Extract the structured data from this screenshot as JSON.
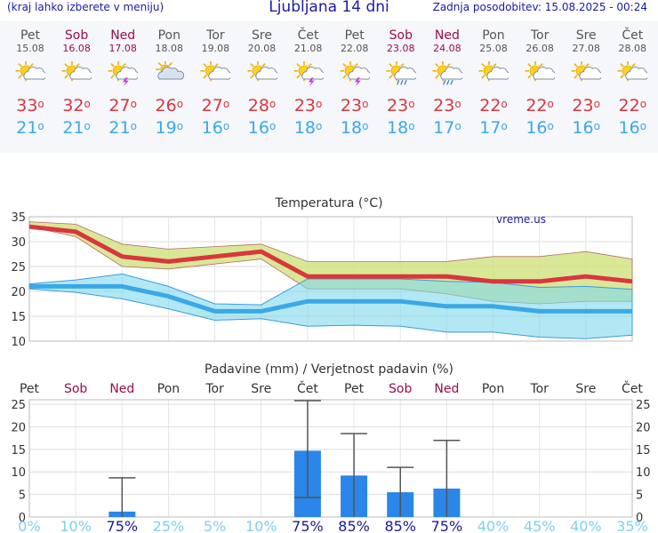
{
  "header": {
    "hint": "(kraj lahko izberete v meniju)",
    "title": "Ljubljana 14 dni",
    "updated": "Zadnja posodobitev: 15.08.2025 - 00:24"
  },
  "days": [
    {
      "name": "Pet",
      "date": "15.08",
      "weekend": false,
      "icon": "sun-cloud-icon",
      "hi": "33",
      "lo": "21"
    },
    {
      "name": "Sob",
      "date": "16.08",
      "weekend": true,
      "icon": "sun-cloud-icon",
      "hi": "32",
      "lo": "21"
    },
    {
      "name": "Ned",
      "date": "17.08",
      "weekend": true,
      "icon": "thunderstorm-sun-icon",
      "hi": "27",
      "lo": "21"
    },
    {
      "name": "Pon",
      "date": "18.08",
      "weekend": false,
      "icon": "cloudy-sun-icon",
      "hi": "26",
      "lo": "19"
    },
    {
      "name": "Tor",
      "date": "19.08",
      "weekend": false,
      "icon": "sun-cloud-icon",
      "hi": "27",
      "lo": "16"
    },
    {
      "name": "Sre",
      "date": "20.08",
      "weekend": false,
      "icon": "sun-cloud-icon",
      "hi": "28",
      "lo": "16"
    },
    {
      "name": "Čet",
      "date": "21.08",
      "weekend": false,
      "icon": "thunderstorm-sun-icon",
      "hi": "23",
      "lo": "18"
    },
    {
      "name": "Pet",
      "date": "22.08",
      "weekend": false,
      "icon": "thunderstorm-sun-icon",
      "hi": "23",
      "lo": "18"
    },
    {
      "name": "Sob",
      "date": "23.08",
      "weekend": true,
      "icon": "rain-sun-icon",
      "hi": "23",
      "lo": "18"
    },
    {
      "name": "Ned",
      "date": "24.08",
      "weekend": true,
      "icon": "rain-sun-icon",
      "hi": "23",
      "lo": "17"
    },
    {
      "name": "Pon",
      "date": "25.08",
      "weekend": false,
      "icon": "sun-cloud-icon",
      "hi": "22",
      "lo": "17"
    },
    {
      "name": "Tor",
      "date": "26.08",
      "weekend": false,
      "icon": "sun-cloud-icon",
      "hi": "22",
      "lo": "16"
    },
    {
      "name": "Sre",
      "date": "27.08",
      "weekend": false,
      "icon": "sun-cloud-icon",
      "hi": "23",
      "lo": "16"
    },
    {
      "name": "Čet",
      "date": "28.08",
      "weekend": false,
      "icon": "sun-cloud-icon",
      "hi": "22",
      "lo": "16"
    }
  ],
  "colors": {
    "weekend": "#9a0c4e",
    "weekday": "#555555",
    "max": "#d9363e",
    "min": "#3ba8e6",
    "max_band": "#cfe27c",
    "min_band": "#7fd8ec",
    "overlap_band": "#7fcf8e",
    "bar": "#2a86e8",
    "prob_low": "#7fd0f0",
    "prob_high": "#1a1a9a",
    "title_blue": "#1a1aa8"
  },
  "chart_data": [
    {
      "type": "area",
      "title": "Temperatura (°C)",
      "watermark": "vreme.us",
      "x": [
        "15.08",
        "16.08",
        "17.08",
        "18.08",
        "19.08",
        "20.08",
        "21.08",
        "22.08",
        "23.08",
        "24.08",
        "25.08",
        "26.08",
        "27.08",
        "28.08"
      ],
      "ylim": [
        10,
        35
      ],
      "yticks": [
        "10",
        "15",
        "20",
        "25",
        "30",
        "35"
      ],
      "grid": true,
      "series": [
        {
          "name": "max",
          "values": [
            33,
            32,
            27,
            26,
            27,
            28,
            23,
            23,
            23,
            23,
            22,
            22,
            23,
            22
          ],
          "band_low": [
            33,
            31,
            25,
            24.5,
            25.5,
            26.5,
            20.5,
            20.5,
            20.5,
            19.5,
            18,
            17.5,
            18,
            18
          ],
          "band_high": [
            34,
            33.5,
            29.5,
            28.5,
            29,
            29.5,
            26,
            26,
            26,
            26,
            27,
            27,
            28,
            26.5
          ]
        },
        {
          "name": "min",
          "values": [
            21,
            21,
            21,
            19,
            16,
            16,
            18,
            18,
            18,
            17,
            17,
            16,
            16,
            16
          ],
          "band_low": [
            20.5,
            19.8,
            18.5,
            16.5,
            14.2,
            14.5,
            13,
            13.2,
            13,
            11.8,
            11.8,
            10.8,
            10.5,
            11.2
          ],
          "band_high": [
            21.5,
            22.3,
            23.5,
            21,
            17.5,
            17.3,
            22.5,
            22.5,
            22.5,
            22,
            21.8,
            20.8,
            21,
            20.4
          ]
        }
      ]
    },
    {
      "type": "bar",
      "title": "Padavine (mm) / Verjetnost padavin (%)",
      "categories": [
        "Pet",
        "Sob",
        "Ned",
        "Pon",
        "Tor",
        "Sre",
        "Čet",
        "Pet",
        "Sob",
        "Ned",
        "Pon",
        "Tor",
        "Sre",
        "Čet"
      ],
      "weekend": [
        false,
        true,
        true,
        false,
        false,
        false,
        false,
        false,
        true,
        true,
        false,
        false,
        false,
        false
      ],
      "values": [
        0,
        0,
        1.2,
        0,
        0,
        0,
        14.7,
        9.2,
        5.5,
        6.3,
        0,
        0,
        0,
        0
      ],
      "err_low": [
        0,
        0,
        0,
        0,
        0,
        0,
        4.3,
        0,
        0,
        0,
        0,
        0,
        0,
        0
      ],
      "err_high": [
        0,
        0,
        8.7,
        0,
        0,
        0,
        25.8,
        18.5,
        11,
        17,
        0,
        0,
        0,
        0
      ],
      "probability": [
        "0%",
        "10%",
        "75%",
        "25%",
        "5%",
        "10%",
        "75%",
        "85%",
        "85%",
        "75%",
        "40%",
        "45%",
        "40%",
        "35%"
      ],
      "prob_values": [
        0,
        10,
        75,
        25,
        5,
        10,
        75,
        85,
        85,
        75,
        40,
        45,
        40,
        35
      ],
      "ylim": [
        0,
        26
      ],
      "yticks": [
        "0",
        "5",
        "10",
        "15",
        "20",
        "25"
      ]
    }
  ]
}
